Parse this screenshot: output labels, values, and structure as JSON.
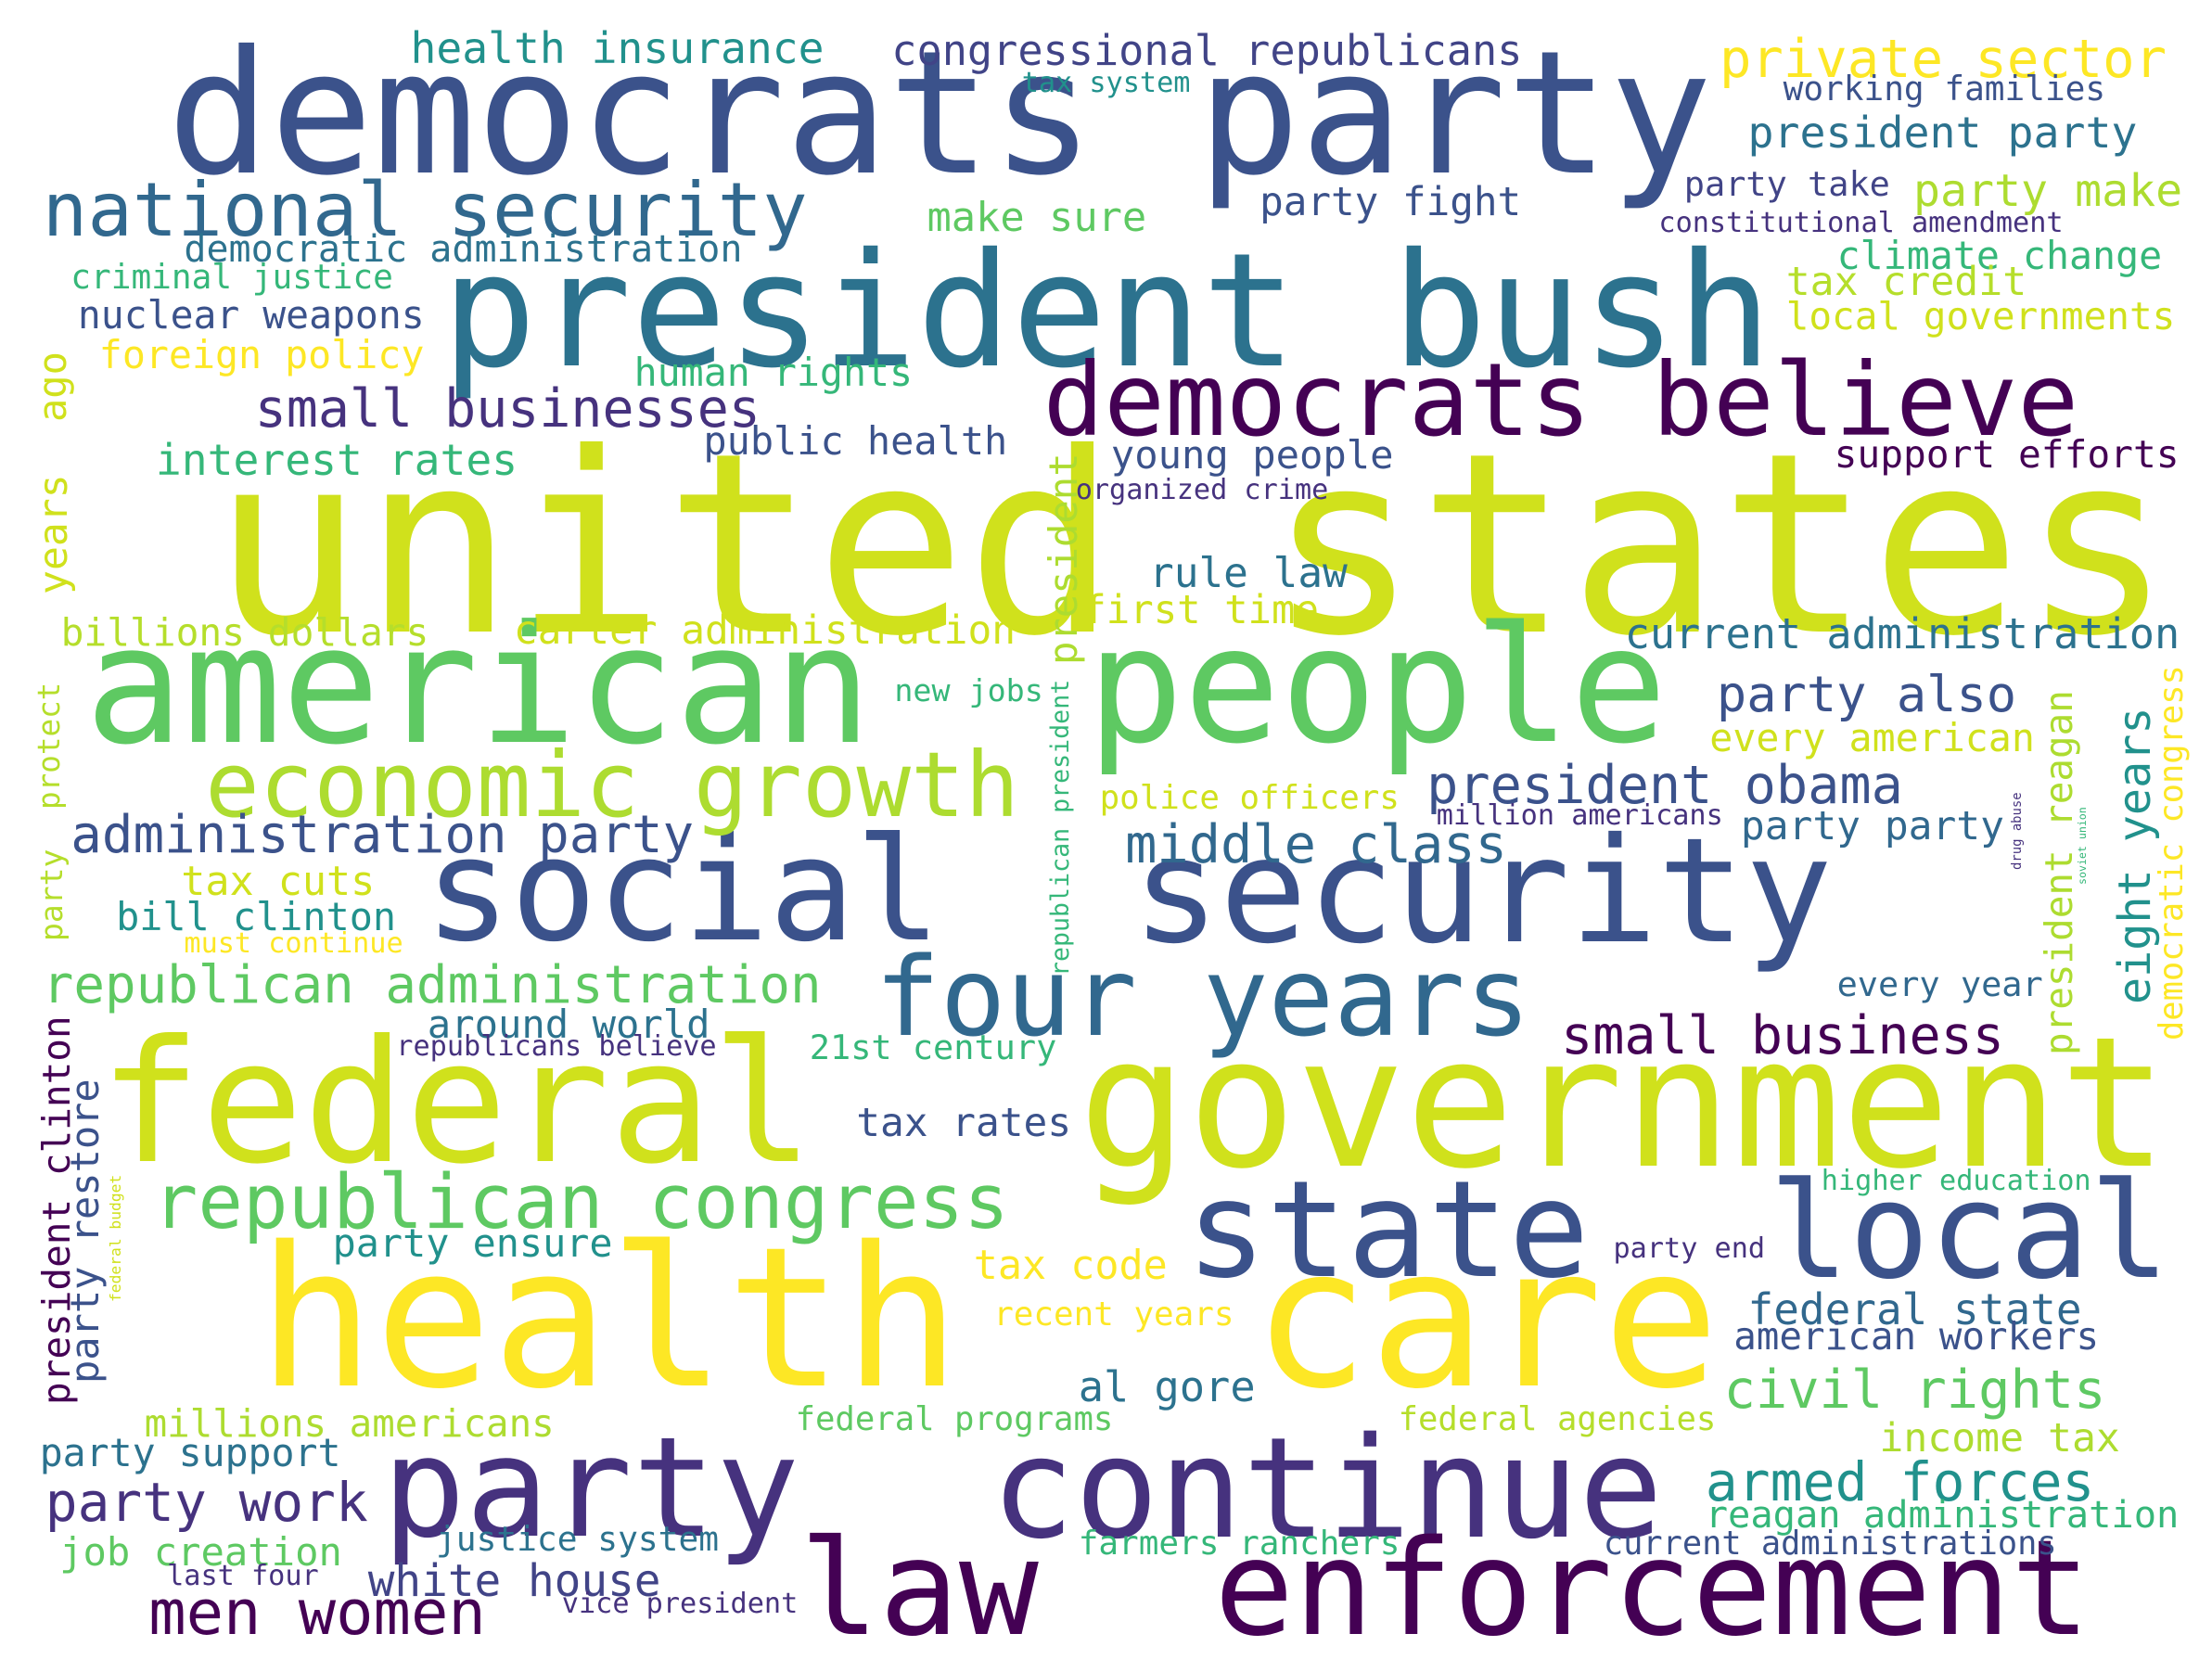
{
  "words": [
    {
      "text": "democrats party",
      "color": "#3b528b"
    },
    {
      "text": "president bush",
      "color": "#2c728e"
    },
    {
      "text": "united states",
      "color": "#d0e11c"
    },
    {
      "text": "american",
      "color": "#5ec962"
    },
    {
      "text": "people",
      "color": "#5ec962"
    },
    {
      "text": "federal",
      "color": "#d0e11c"
    },
    {
      "text": "government",
      "color": "#d0e11c"
    },
    {
      "text": "health",
      "color": "#fde725"
    },
    {
      "text": "care",
      "color": "#fde725"
    },
    {
      "text": "social",
      "color": "#3b528b"
    },
    {
      "text": "security",
      "color": "#3b528b"
    },
    {
      "text": "party",
      "color": "#46327e"
    },
    {
      "text": "continue",
      "color": "#46327e"
    },
    {
      "text": "law",
      "color": "#440154"
    },
    {
      "text": "enforcement",
      "color": "#440154"
    },
    {
      "text": "democrats believe",
      "color": "#440154"
    },
    {
      "text": "state",
      "color": "#3b528b"
    },
    {
      "text": "local",
      "color": "#3b528b"
    },
    {
      "text": "four years",
      "color": "#31688e"
    },
    {
      "text": "economic growth",
      "color": "#addc30"
    },
    {
      "text": "national security",
      "color": "#31688e"
    },
    {
      "text": "republican congress",
      "color": "#5ec962"
    },
    {
      "text": "men women",
      "color": "#440154"
    },
    {
      "text": "health insurance",
      "color": "#21918c"
    },
    {
      "text": "congressional republicans",
      "color": "#414487"
    },
    {
      "text": "private sector",
      "color": "#fde725"
    },
    {
      "text": "tax system",
      "color": "#21918c"
    },
    {
      "text": "working families",
      "color": "#3b528b"
    },
    {
      "text": "president party",
      "color": "#2c728e"
    },
    {
      "text": "party fight",
      "color": "#3b528b"
    },
    {
      "text": "party take",
      "color": "#414487"
    },
    {
      "text": "party make",
      "color": "#addc30"
    },
    {
      "text": "make sure",
      "color": "#5ec962"
    },
    {
      "text": "constitutional amendment",
      "color": "#46327e"
    },
    {
      "text": "climate change",
      "color": "#35b779"
    },
    {
      "text": "tax credit",
      "color": "#b5de2b"
    },
    {
      "text": "local governments",
      "color": "#d0e11c"
    },
    {
      "text": "democratic administration",
      "color": "#2c728e"
    },
    {
      "text": "criminal justice",
      "color": "#35b779"
    },
    {
      "text": "nuclear weapons",
      "color": "#3b528b"
    },
    {
      "text": "foreign policy",
      "color": "#fde725"
    },
    {
      "text": "human rights",
      "color": "#35b779"
    },
    {
      "text": "small businesses",
      "color": "#46327e"
    },
    {
      "text": "public health",
      "color": "#3b528b"
    },
    {
      "text": "interest rates",
      "color": "#35b779"
    },
    {
      "text": "young people",
      "color": "#3b528b"
    },
    {
      "text": "organized crime",
      "color": "#46327e"
    },
    {
      "text": "support efforts",
      "color": "#440154"
    },
    {
      "text": "rule law",
      "color": "#2c728e"
    },
    {
      "text": "first time",
      "color": "#d0e11c"
    },
    {
      "text": "billions dollars",
      "color": "#b5de2b"
    },
    {
      "text": "carter administration",
      "color": "#d0e11c"
    },
    {
      "text": "current administration",
      "color": "#2c728e"
    },
    {
      "text": "new jobs",
      "color": "#35b779"
    },
    {
      "text": "party also",
      "color": "#3b528b"
    },
    {
      "text": "every american",
      "color": "#d0e11c"
    },
    {
      "text": "president obama",
      "color": "#3b528b"
    },
    {
      "text": "police officers",
      "color": "#d0e11c"
    },
    {
      "text": "million americans",
      "color": "#46327e"
    },
    {
      "text": "party party",
      "color": "#31688e"
    },
    {
      "text": "administration party",
      "color": "#3b528b"
    },
    {
      "text": "middle class",
      "color": "#31688e"
    },
    {
      "text": "tax cuts",
      "color": "#d0e11c"
    },
    {
      "text": "bill clinton",
      "color": "#21918c"
    },
    {
      "text": "must continue",
      "color": "#fde725"
    },
    {
      "text": "republican administration",
      "color": "#5ec962"
    },
    {
      "text": "around world",
      "color": "#2c728e"
    },
    {
      "text": "republicans believe",
      "color": "#46327e"
    },
    {
      "text": "21st century",
      "color": "#35b779"
    },
    {
      "text": "small business",
      "color": "#440154"
    },
    {
      "text": "every year",
      "color": "#31688e"
    },
    {
      "text": "tax rates",
      "color": "#3b528b"
    },
    {
      "text": "higher education",
      "color": "#35b779"
    },
    {
      "text": "party ensure",
      "color": "#21918c"
    },
    {
      "text": "tax code",
      "color": "#fde725"
    },
    {
      "text": "party end",
      "color": "#46327e"
    },
    {
      "text": "federal state",
      "color": "#31688e"
    },
    {
      "text": "american workers",
      "color": "#3b528b"
    },
    {
      "text": "recent years",
      "color": "#fde725"
    },
    {
      "text": "al gore",
      "color": "#2c728e"
    },
    {
      "text": "civil rights",
      "color": "#5ec962"
    },
    {
      "text": "millions americans",
      "color": "#addc30"
    },
    {
      "text": "federal programs",
      "color": "#5ec962"
    },
    {
      "text": "federal agencies",
      "color": "#b5de2b"
    },
    {
      "text": "income tax",
      "color": "#addc30"
    },
    {
      "text": "party support",
      "color": "#2c728e"
    },
    {
      "text": "armed forces",
      "color": "#21918c"
    },
    {
      "text": "party work",
      "color": "#46327e"
    },
    {
      "text": "reagan administration",
      "color": "#35b779"
    },
    {
      "text": "job creation",
      "color": "#5ec962"
    },
    {
      "text": "justice system",
      "color": "#2c728e"
    },
    {
      "text": "farmers ranchers",
      "color": "#35b779"
    },
    {
      "text": "current administrations",
      "color": "#3b528b"
    },
    {
      "text": "white house",
      "color": "#414487"
    },
    {
      "text": "last four",
      "color": "#46327e"
    },
    {
      "text": "vice president",
      "color": "#46327e"
    },
    {
      "text": "ago",
      "color": "#d0e11c"
    },
    {
      "text": "years",
      "color": "#d0e11c"
    },
    {
      "text": "protect",
      "color": "#b5de2b"
    },
    {
      "text": "party",
      "color": "#b5de2b"
    },
    {
      "text": "president",
      "color": "#addc30"
    },
    {
      "text": "republican president",
      "color": "#35b779"
    },
    {
      "text": "president reagan",
      "color": "#addc30"
    },
    {
      "text": "eight years",
      "color": "#21918c"
    },
    {
      "text": "drug abuse",
      "color": "#46327e"
    },
    {
      "text": "soviet union",
      "color": "#35b779"
    },
    {
      "text": "democratic congress",
      "color": "#fde725"
    },
    {
      "text": "president clinton",
      "color": "#440154"
    },
    {
      "text": "party restore",
      "color": "#3b528b"
    },
    {
      "text": "federal budget",
      "color": "#d0e11c"
    }
  ]
}
